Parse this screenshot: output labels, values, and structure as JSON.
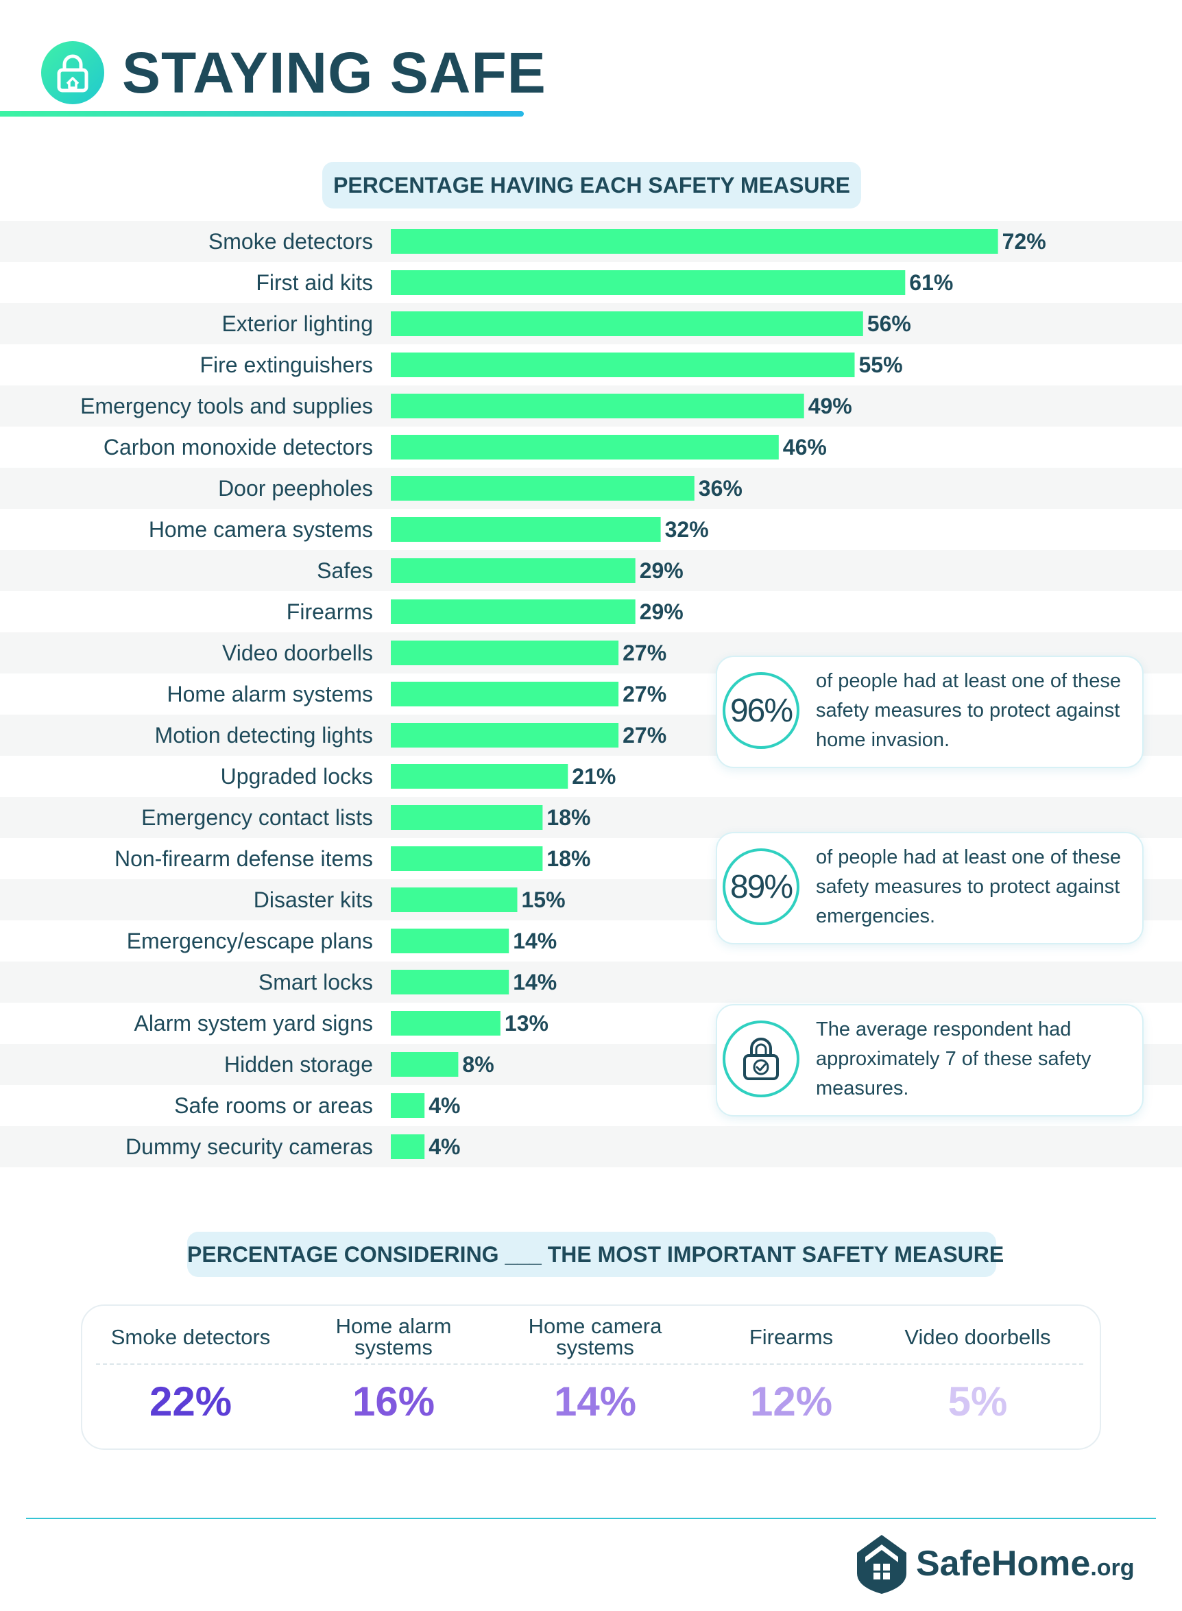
{
  "header": {
    "title": "STAYING SAFE"
  },
  "chart_heading": "PERCENTAGE HAVING EACH SAFETY MEASURE",
  "chart_data": {
    "type": "bar",
    "orientation": "horizontal",
    "title": "PERCENTAGE HAVING EACH SAFETY MEASURE",
    "categories": [
      "Smoke detectors",
      "First aid kits",
      "Exterior lighting",
      "Fire extinguishers",
      "Emergency tools and supplies",
      "Carbon monoxide detectors",
      "Door peepholes",
      "Home camera systems",
      "Safes",
      "Firearms",
      "Video doorbells",
      "Home alarm systems",
      "Motion detecting lights",
      "Upgraded locks",
      "Emergency contact lists",
      "Non-firearm defense items",
      "Disaster kits",
      "Emergency/escape plans",
      "Smart locks",
      "Alarm system yard signs",
      "Hidden storage",
      "Safe rooms or areas",
      "Dummy security cameras"
    ],
    "values": [
      72,
      61,
      56,
      55,
      49,
      46,
      36,
      32,
      29,
      29,
      27,
      27,
      27,
      21,
      18,
      18,
      15,
      14,
      14,
      13,
      8,
      4,
      4
    ],
    "value_labels": [
      "72%",
      "61%",
      "56%",
      "55%",
      "49%",
      "46%",
      "36%",
      "32%",
      "29%",
      "29%",
      "27%",
      "27%",
      "27%",
      "21%",
      "18%",
      "18%",
      "15%",
      "14%",
      "14%",
      "13%",
      "8%",
      "4%",
      "4%"
    ],
    "unit": "%",
    "xlim": [
      0,
      100
    ],
    "grid": false,
    "bar_color": "#3dfc96",
    "row_stripe_color": "#f5f6f6"
  },
  "callouts": [
    {
      "value": "96%",
      "text": "of people had at least one of these safety measures to protect against home invasion."
    },
    {
      "value": "89%",
      "text": "of people had at least one of these safety measures to protect against emergencies."
    },
    {
      "icon": "lock-check-icon",
      "text": "The average respondent had approximately 7 of these safety measures."
    }
  ],
  "important": {
    "heading": "PERCENTAGE CONSIDERING ___ THE MOST IMPORTANT SAFETY MEASURE",
    "items": [
      {
        "label": "Smoke detectors",
        "value": "22%",
        "color": "#5c3ed6"
      },
      {
        "label": "Home alarm systems",
        "value": "16%",
        "color": "#8058de"
      },
      {
        "label": "Home camera systems",
        "value": "14%",
        "color": "#9a79e6"
      },
      {
        "label": "Firearms",
        "value": "12%",
        "color": "#b49ced"
      },
      {
        "label": "Video doorbells",
        "value": "5%",
        "color": "#d4c6f5"
      }
    ]
  },
  "colors": {
    "text": "#1e4a5a",
    "accent_green": "#3dfc96",
    "accent_teal": "#2fd0c0",
    "heading_bg": "#dff2f9"
  },
  "footer": {
    "logo_name": "SafeHome",
    "logo_tld": ".org",
    "logo_icon": "house-shield-icon"
  }
}
